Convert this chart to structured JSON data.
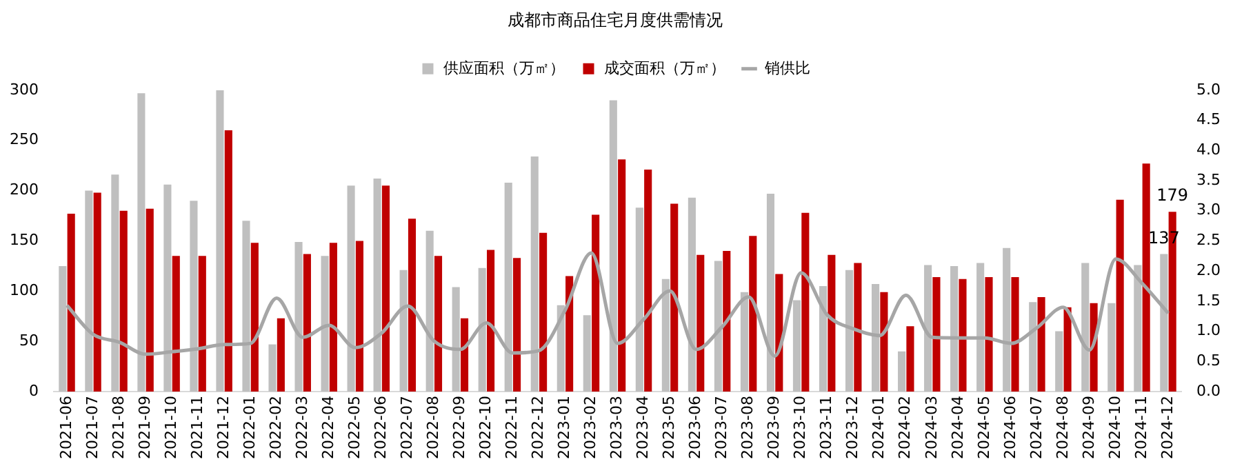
{
  "chart_data": {
    "type": "bar",
    "title": "成都市商品住宅月度供需情况",
    "categories": [
      "2021-06",
      "2021-07",
      "2021-08",
      "2021-09",
      "2021-10",
      "2021-11",
      "2021-12",
      "2022-01",
      "2022-02",
      "2022-03",
      "2022-04",
      "2022-05",
      "2022-06",
      "2022-07",
      "2022-08",
      "2022-09",
      "2022-10",
      "2022-11",
      "2022-12",
      "2023-01",
      "2023-02",
      "2023-03",
      "2023-04",
      "2023-05",
      "2023-06",
      "2023-07",
      "2023-08",
      "2023-09",
      "2023-10",
      "2023-11",
      "2023-12",
      "2024-01",
      "2024-02",
      "2024-03",
      "2024-04",
      "2024-05",
      "2024-06",
      "2024-07",
      "2024-08",
      "2024-09",
      "2024-10",
      "2024-11",
      "2024-12"
    ],
    "series": [
      {
        "name": "供应面积（万㎡）",
        "color": "#bfbfbf",
        "values": [
          125,
          200,
          216,
          297,
          206,
          190,
          300,
          170,
          47,
          149,
          135,
          205,
          212,
          121,
          160,
          104,
          123,
          208,
          234,
          86,
          76,
          290,
          183,
          112,
          193,
          130,
          99,
          197,
          91,
          105,
          121,
          107,
          40,
          126,
          125,
          128,
          143,
          89,
          60,
          128,
          88,
          126,
          137
        ],
        "value_labels": [
          null,
          null,
          null,
          null,
          null,
          null,
          null,
          null,
          null,
          null,
          null,
          null,
          null,
          null,
          null,
          null,
          null,
          null,
          null,
          null,
          null,
          null,
          null,
          null,
          null,
          null,
          null,
          null,
          null,
          null,
          null,
          null,
          null,
          null,
          null,
          null,
          null,
          null,
          null,
          null,
          null,
          null,
          "137"
        ]
      },
      {
        "name": "成交面积（万㎡）",
        "color": "#c00000",
        "values": [
          177,
          198,
          180,
          182,
          135,
          135,
          260,
          148,
          73,
          137,
          148,
          150,
          205,
          172,
          135,
          73,
          141,
          133,
          158,
          115,
          176,
          231,
          221,
          187,
          136,
          140,
          155,
          117,
          178,
          136,
          128,
          99,
          65,
          114,
          112,
          114,
          114,
          94,
          84,
          88,
          191,
          227,
          179
        ],
        "value_labels": [
          null,
          null,
          null,
          null,
          null,
          null,
          null,
          null,
          null,
          null,
          null,
          null,
          null,
          null,
          null,
          null,
          null,
          null,
          null,
          null,
          null,
          null,
          null,
          null,
          null,
          null,
          null,
          null,
          null,
          null,
          null,
          null,
          null,
          null,
          null,
          null,
          null,
          null,
          null,
          null,
          null,
          null,
          "179"
        ]
      },
      {
        "name": "销供比",
        "type": "line",
        "axis": "y2",
        "color": "#a6a6a6",
        "values": [
          1.43,
          0.95,
          0.82,
          0.62,
          0.66,
          0.71,
          0.78,
          0.8,
          1.55,
          0.9,
          1.1,
          0.73,
          0.97,
          1.42,
          0.84,
          0.7,
          1.14,
          0.64,
          0.68,
          1.35,
          2.3,
          0.8,
          1.2,
          1.67,
          0.7,
          1.08,
          1.57,
          0.59,
          1.97,
          1.27,
          1.04,
          0.93,
          1.6,
          0.9,
          0.89,
          0.89,
          0.8,
          1.06,
          1.4,
          0.69,
          2.2,
          1.8,
          1.3
        ]
      }
    ],
    "ylim": [
      0,
      300
    ],
    "yticks": [
      0,
      50,
      100,
      150,
      200,
      250,
      300
    ],
    "y2lim": [
      0,
      5
    ],
    "y2ticks": [
      {
        "value": 0,
        "label": "0.0"
      },
      {
        "value": 0.5,
        "label": "0.5"
      },
      {
        "value": 1,
        "label": "1.0"
      },
      {
        "value": 1.5,
        "label": "1.5"
      },
      {
        "value": 2,
        "label": "2.0"
      },
      {
        "value": 2.5,
        "label": "2.5"
      },
      {
        "value": 3,
        "label": "3.0"
      },
      {
        "value": 3.5,
        "label": "3.5"
      },
      {
        "value": 4,
        "label": "4.0"
      },
      {
        "value": 4.5,
        "label": "4.5"
      },
      {
        "value": 5,
        "label": "5.0"
      }
    ],
    "grid": false,
    "legend": "top",
    "marker": "none",
    "line_style": "solid"
  }
}
